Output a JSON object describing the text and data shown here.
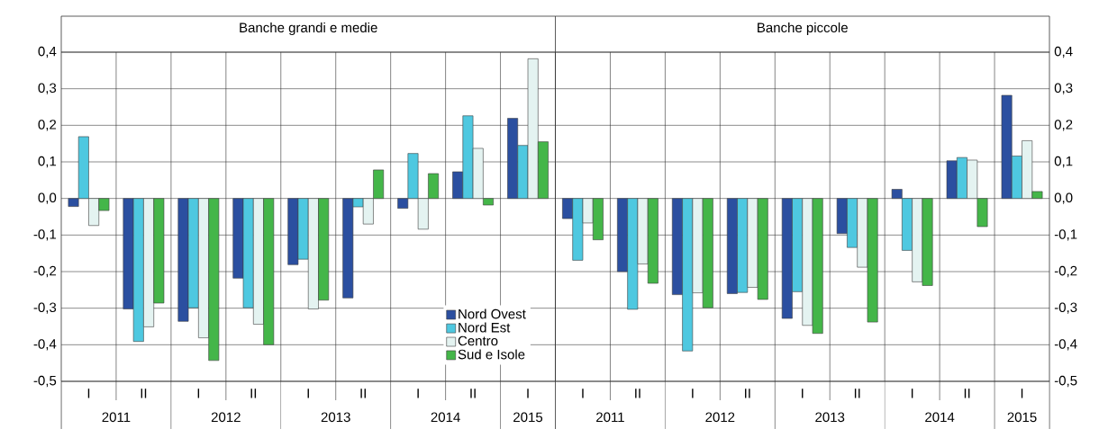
{
  "chart_data": [
    {
      "type": "bar",
      "title": "Banche grandi e medie",
      "categories": [
        "I",
        "II",
        "I",
        "II",
        "I",
        "II",
        "I",
        "II",
        "I"
      ],
      "annotations": [
        "2011",
        "2012",
        "2013",
        "2014",
        "2015"
      ],
      "series": [
        {
          "name": "Nord Ovest",
          "color": "#2b4fa0",
          "values": [
            -0.022,
            -0.302,
            -0.336,
            -0.218,
            -0.181,
            -0.272,
            -0.027,
            0.073,
            0.219
          ]
        },
        {
          "name": "Nord Est",
          "color": "#4ec8e0",
          "values": [
            0.169,
            -0.391,
            -0.299,
            -0.299,
            -0.166,
            -0.023,
            0.123,
            0.226,
            0.145
          ]
        },
        {
          "name": "Centro",
          "color": "#e4f3f1",
          "values": [
            -0.074,
            -0.351,
            -0.381,
            -0.344,
            -0.302,
            -0.07,
            -0.084,
            0.137,
            0.382
          ]
        },
        {
          "name": "Sud e Isole",
          "color": "#44b649",
          "values": [
            -0.033,
            -0.286,
            -0.443,
            -0.4,
            -0.278,
            0.078,
            0.068,
            -0.018,
            0.155
          ]
        }
      ],
      "ylim": [
        -0.5,
        0.4
      ],
      "yticks": [
        {
          "value": -0.5,
          "label": "-0,5"
        },
        {
          "value": -0.4,
          "label": "-0,4"
        },
        {
          "value": -0.3,
          "label": "-0,3"
        },
        {
          "value": -0.2,
          "label": "-0,2"
        },
        {
          "value": -0.1,
          "label": "-0,1"
        },
        {
          "value": 0,
          "label": "0,0"
        },
        {
          "value": 0.1,
          "label": "0,1"
        },
        {
          "value": 0.2,
          "label": "0,2"
        },
        {
          "value": 0.3,
          "label": "0,3"
        },
        {
          "value": 0.4,
          "label": "0,4"
        }
      ],
      "grid": "y",
      "legend": "bottom right"
    },
    {
      "type": "bar",
      "title": "Banche piccole",
      "categories": [
        "I",
        "II",
        "I",
        "II",
        "I",
        "II",
        "I",
        "II",
        "I"
      ],
      "annotations": [
        "2011",
        "2012",
        "2013",
        "2014",
        "2015"
      ],
      "series": [
        {
          "color": "#2b4fa0",
          "values": [
            -0.055,
            -0.2,
            -0.263,
            -0.26,
            -0.328,
            -0.096,
            0.025,
            0.103,
            0.282
          ]
        },
        {
          "color": "#4ec8e0",
          "values": [
            -0.169,
            -0.303,
            -0.417,
            -0.257,
            -0.255,
            -0.134,
            -0.142,
            0.112,
            0.116
          ]
        },
        {
          "color": "#e4f3f1",
          "values": [
            -0.067,
            -0.179,
            -0.258,
            -0.243,
            -0.347,
            -0.188,
            -0.228,
            0.105,
            0.158
          ]
        },
        {
          "color": "#44b649",
          "values": [
            -0.113,
            -0.232,
            -0.299,
            -0.276,
            -0.369,
            -0.338,
            -0.238,
            -0.077,
            0.019
          ]
        }
      ],
      "ylim": [
        -0.5,
        0.4
      ],
      "yticks": [
        {
          "value": -0.5,
          "label": "-0,5"
        },
        {
          "value": -0.4,
          "label": "-0,4"
        },
        {
          "value": -0.3,
          "label": "-0,3"
        },
        {
          "value": -0.2,
          "label": "-0,2"
        },
        {
          "value": -0.1,
          "label": "-0,1"
        },
        {
          "value": 0,
          "label": "0,0"
        },
        {
          "value": 0.1,
          "label": "0,1"
        },
        {
          "value": 0.2,
          "label": "0,2"
        },
        {
          "value": 0.3,
          "label": "0,3"
        },
        {
          "value": 0.4,
          "label": "0,4"
        }
      ],
      "grid": "y"
    }
  ]
}
